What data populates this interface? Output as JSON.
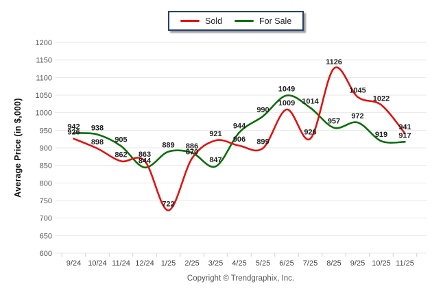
{
  "legend": {
    "sold_label": "Sold",
    "for_sale_label": "For Sale"
  },
  "y_axis_title": "Average Price (in $,000)",
  "copyright": "Copyright © Trendgraphix, Inc.",
  "colors": {
    "sold": "#e31111",
    "for_sale": "#0a6e0a",
    "grid": "#e7e7e7",
    "tick": "#cfcfcf",
    "legend_border": "#26406c"
  },
  "chart_data": {
    "type": "line",
    "title": "",
    "xlabel": "",
    "ylabel": "Average Price (in $,000)",
    "categories": [
      "9/24",
      "10/24",
      "11/24",
      "12/24",
      "1/25",
      "2/25",
      "3/25",
      "4/25",
      "5/25",
      "6/25",
      "7/25",
      "8/25",
      "9/25",
      "10/25",
      "11/25"
    ],
    "series": [
      {
        "name": "Sold",
        "color_key": "sold",
        "values": [
          926,
          898,
          862,
          863,
          722,
          870,
          921,
          906,
          899,
          1009,
          926,
          1126,
          1045,
          1022,
          941
        ]
      },
      {
        "name": "For Sale",
        "color_key": "for_sale",
        "values": [
          942,
          938,
          905,
          844,
          889,
          886,
          847,
          944,
          990,
          1049,
          1014,
          957,
          972,
          919,
          917
        ]
      }
    ],
    "ylim": [
      600,
      1200
    ],
    "ytick_step": 50,
    "grid": true,
    "legend_position": "top-center",
    "smooth": true,
    "data_labels": true
  }
}
